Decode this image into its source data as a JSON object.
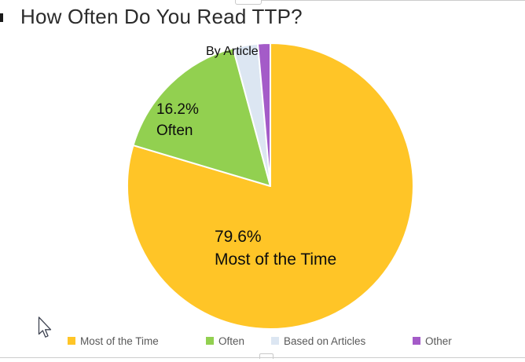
{
  "title": "How Often Do You Read TTP?",
  "chart_data": {
    "type": "pie",
    "title": "How Often Do You Read TTP?",
    "categories": [
      "Most of the Time",
      "Often",
      "Based on Articles",
      "Other"
    ],
    "values": [
      79.6,
      16.2,
      2.8,
      1.4
    ],
    "colors": [
      "#FFC527",
      "#92D050",
      "#DCE6F2",
      "#A45BC8"
    ],
    "start_angle_deg": 0,
    "direction": "clockwise",
    "legend_position": "bottom",
    "data_labels": [
      {
        "slice": "Most of the Time",
        "lines": [
          "79.6%",
          "Most of the Time"
        ]
      },
      {
        "slice": "Often",
        "lines": [
          "16.2%",
          "Often"
        ]
      },
      {
        "slice": "Based on Articles",
        "lines": [
          "By Article"
        ]
      }
    ]
  },
  "labels": {
    "most_pct": "79.6%",
    "most_name": "Most of the Time",
    "often_pct": "16.2%",
    "often_name": "Often",
    "by_article": "By Article"
  },
  "legend": {
    "items": [
      {
        "label": "Most of the Time",
        "color": "#FFC527"
      },
      {
        "label": "Often",
        "color": "#92D050"
      },
      {
        "label": "Based on Articles",
        "color": "#DCE6F2"
      },
      {
        "label": "Other",
        "color": "#A45BC8"
      }
    ]
  },
  "colors": {
    "title_text": "#2B2B2B",
    "legend_text": "#595959",
    "divider": "#CCCCCC",
    "slice_border": "#FFFFFF"
  }
}
